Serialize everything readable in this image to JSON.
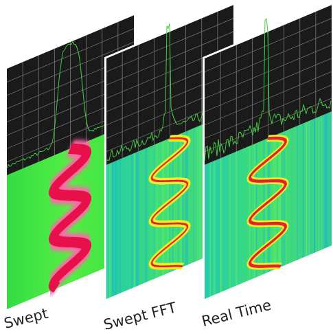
{
  "panels": [
    {
      "label": "Swept"
    },
    {
      "label": "Swept FFT"
    },
    {
      "label": "Real Time"
    }
  ]
}
